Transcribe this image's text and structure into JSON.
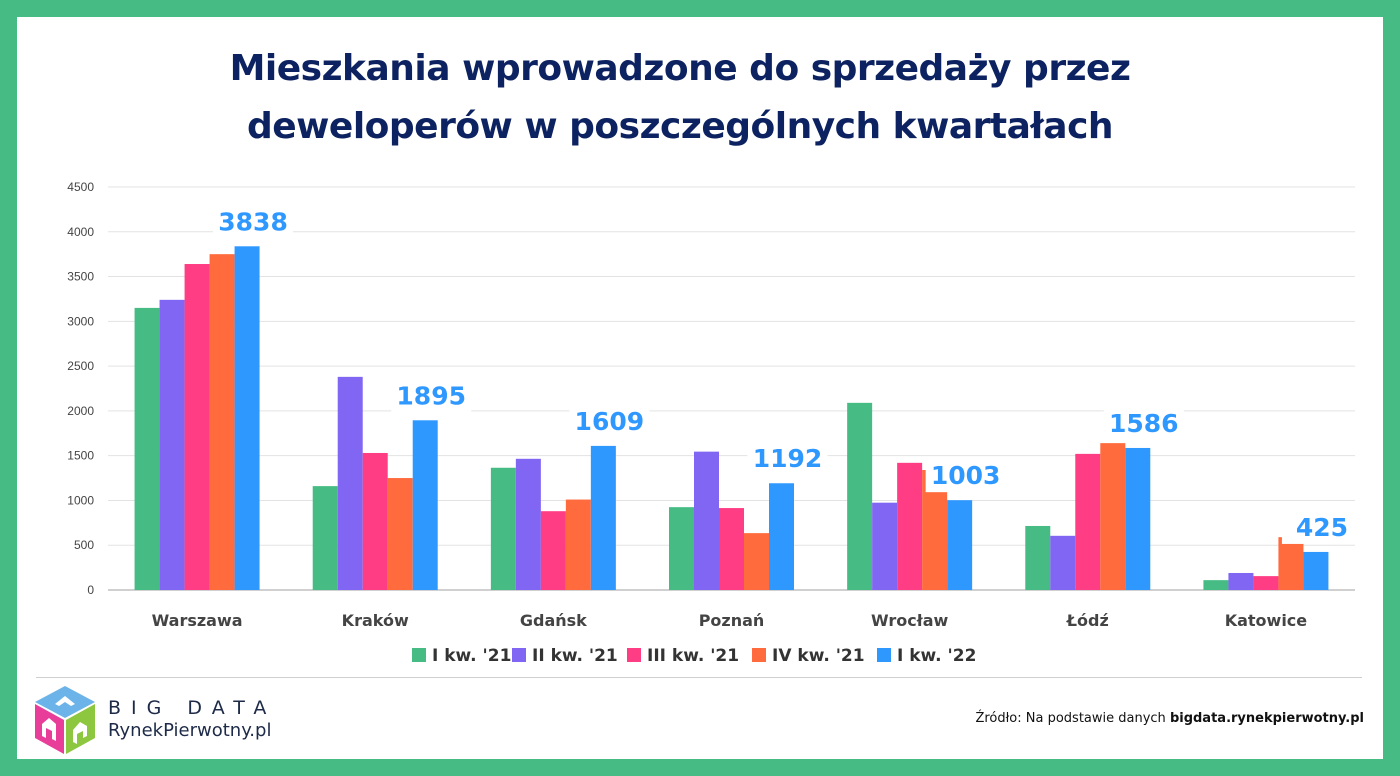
{
  "title_line1": "Mieszkania wprowadzone do sprzedaży przez",
  "title_line2": "deweloperów w poszczególnych kwartałach",
  "brand": {
    "line1": "BIG DATA",
    "line2": "RynekPierwotny.pl"
  },
  "source": {
    "prefix": "Źródło: Na podstawie danych ",
    "site": "bigdata.rynekpierwotny.pl"
  },
  "chart_data": {
    "type": "bar",
    "title": "Mieszkania wprowadzone do sprzedaży przez deweloperów w poszczególnych kwartałach",
    "categories": [
      "Warszawa",
      "Kraków",
      "Gdańsk",
      "Poznań",
      "Wrocław",
      "Łódź",
      "Katowice"
    ],
    "series": [
      {
        "name": "I kw. '21",
        "color": "#46BC84",
        "values": [
          3150,
          1160,
          1365,
          925,
          2090,
          715,
          110
        ]
      },
      {
        "name": "II kw. '21",
        "color": "#8066F2",
        "values": [
          3240,
          2380,
          1465,
          1545,
          975,
          605,
          190
        ]
      },
      {
        "name": "III kw. '21",
        "color": "#FF3D85",
        "values": [
          3640,
          1530,
          880,
          915,
          1420,
          1520,
          155
        ]
      },
      {
        "name": "IV kw. '21",
        "color": "#FF6B3D",
        "values": [
          3750,
          1250,
          1010,
          635,
          1340,
          1640,
          590
        ]
      },
      {
        "name": "I kw. '22",
        "color": "#2F98FF",
        "values": [
          3838,
          1895,
          1609,
          1192,
          1003,
          1586,
          425
        ]
      }
    ],
    "data_labels_series": "I kw. '22",
    "ylim": [
      0,
      4500
    ],
    "yticks": [
      0,
      500,
      1000,
      1500,
      2000,
      2500,
      3000,
      3500,
      4000,
      4500
    ],
    "grid": true,
    "legend": "bottom"
  }
}
